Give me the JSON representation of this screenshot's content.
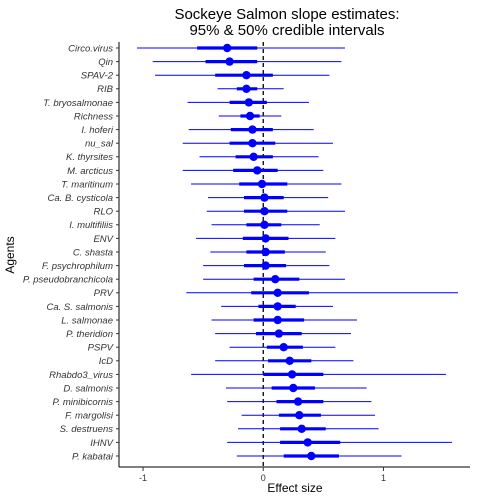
{
  "chart_data": {
    "type": "forest",
    "title_line1": "Sockeye Salmon slope estimates:",
    "title_line2": "95% & 50% credible intervals",
    "xlabel": "Effect size",
    "ylabel": "Agents",
    "xlim": [
      -1.2,
      1.72
    ],
    "xticks": [
      -1,
      0,
      1
    ],
    "reference_line": 0,
    "colors": {
      "point": "#0000ff",
      "interval": "#0000ff",
      "reference": "#000000"
    },
    "agents": [
      {
        "name": "Circo.virus",
        "est": -0.3,
        "lo95": -1.05,
        "hi95": 0.68,
        "lo50": -0.55,
        "hi50": -0.05
      },
      {
        "name": "Qin",
        "est": -0.28,
        "lo95": -0.92,
        "hi95": 0.65,
        "lo50": -0.48,
        "hi50": -0.05
      },
      {
        "name": "SPAV-2",
        "est": -0.14,
        "lo95": -0.9,
        "hi95": 0.55,
        "lo50": -0.4,
        "hi50": 0.08
      },
      {
        "name": "RIB",
        "est": -0.14,
        "lo95": -0.38,
        "hi95": 0.17,
        "lo50": -0.22,
        "hi50": -0.05
      },
      {
        "name": "T. bryosalmonae",
        "est": -0.12,
        "lo95": -0.63,
        "hi95": 0.38,
        "lo50": -0.28,
        "hi50": 0.03
      },
      {
        "name": "Richness",
        "est": -0.11,
        "lo95": -0.37,
        "hi95": 0.15,
        "lo50": -0.19,
        "hi50": -0.03
      },
      {
        "name": "I. hoferi",
        "est": -0.09,
        "lo95": -0.62,
        "hi95": 0.42,
        "lo50": -0.27,
        "hi50": 0.08
      },
      {
        "name": "nu_sal",
        "est": -0.09,
        "lo95": -0.67,
        "hi95": 0.58,
        "lo50": -0.28,
        "hi50": 0.1
      },
      {
        "name": "K. thyrsites",
        "est": -0.08,
        "lo95": -0.53,
        "hi95": 0.46,
        "lo50": -0.23,
        "hi50": 0.08
      },
      {
        "name": "M. arcticus",
        "est": -0.05,
        "lo95": -0.67,
        "hi95": 0.5,
        "lo50": -0.25,
        "hi50": 0.12
      },
      {
        "name": "T. maritinum",
        "est": -0.01,
        "lo95": -0.6,
        "hi95": 0.65,
        "lo50": -0.2,
        "hi50": 0.2
      },
      {
        "name": "Ca. B. cysticola",
        "est": 0.01,
        "lo95": -0.46,
        "hi95": 0.54,
        "lo50": -0.16,
        "hi50": 0.17
      },
      {
        "name": "RLO",
        "est": 0.01,
        "lo95": -0.47,
        "hi95": 0.68,
        "lo50": -0.16,
        "hi50": 0.2
      },
      {
        "name": "I. multifiliis",
        "est": 0.01,
        "lo95": -0.43,
        "hi95": 0.47,
        "lo50": -0.14,
        "hi50": 0.15
      },
      {
        "name": "ENV",
        "est": 0.02,
        "lo95": -0.56,
        "hi95": 0.6,
        "lo50": -0.17,
        "hi50": 0.21
      },
      {
        "name": "C. shasta",
        "est": 0.02,
        "lo95": -0.44,
        "hi95": 0.52,
        "lo50": -0.14,
        "hi50": 0.18
      },
      {
        "name": "F. psychrophilum",
        "est": 0.02,
        "lo95": -0.5,
        "hi95": 0.55,
        "lo50": -0.16,
        "hi50": 0.19
      },
      {
        "name": "P. pseudobranchicola",
        "est": 0.1,
        "lo95": -0.5,
        "hi95": 0.68,
        "lo50": -0.08,
        "hi50": 0.3
      },
      {
        "name": "PRV",
        "est": 0.12,
        "lo95": -0.64,
        "hi95": 1.62,
        "lo50": -0.1,
        "hi50": 0.38
      },
      {
        "name": "Ca. S. salmonis",
        "est": 0.12,
        "lo95": -0.35,
        "hi95": 0.58,
        "lo50": -0.04,
        "hi50": 0.27
      },
      {
        "name": "L. salmonae",
        "est": 0.12,
        "lo95": -0.43,
        "hi95": 0.78,
        "lo50": -0.08,
        "hi50": 0.34
      },
      {
        "name": "P. theridion",
        "est": 0.13,
        "lo95": -0.4,
        "hi95": 0.73,
        "lo50": -0.06,
        "hi50": 0.32
      },
      {
        "name": "PSPV",
        "est": 0.17,
        "lo95": -0.28,
        "hi95": 0.6,
        "lo50": 0.03,
        "hi50": 0.33
      },
      {
        "name": "IcD",
        "est": 0.22,
        "lo95": -0.4,
        "hi95": 0.75,
        "lo50": 0.04,
        "hi50": 0.4
      },
      {
        "name": "Rhabdo3_virus",
        "est": 0.24,
        "lo95": -0.6,
        "hi95": 1.52,
        "lo50": 0.0,
        "hi50": 0.5
      },
      {
        "name": "D. salmonis",
        "est": 0.25,
        "lo95": -0.31,
        "hi95": 0.86,
        "lo50": 0.07,
        "hi50": 0.43
      },
      {
        "name": "P. minibicornis",
        "est": 0.29,
        "lo95": -0.3,
        "hi95": 0.9,
        "lo50": 0.11,
        "hi50": 0.5
      },
      {
        "name": "F. margolisi",
        "est": 0.3,
        "lo95": -0.18,
        "hi95": 0.93,
        "lo50": 0.13,
        "hi50": 0.48
      },
      {
        "name": "S. destruens",
        "est": 0.32,
        "lo95": -0.21,
        "hi95": 0.96,
        "lo50": 0.14,
        "hi50": 0.52
      },
      {
        "name": "IHNV",
        "est": 0.37,
        "lo95": -0.3,
        "hi95": 1.57,
        "lo50": 0.14,
        "hi50": 0.64
      },
      {
        "name": "P. kabatai",
        "est": 0.4,
        "lo95": -0.22,
        "hi95": 1.15,
        "lo50": 0.17,
        "hi50": 0.63
      }
    ]
  }
}
